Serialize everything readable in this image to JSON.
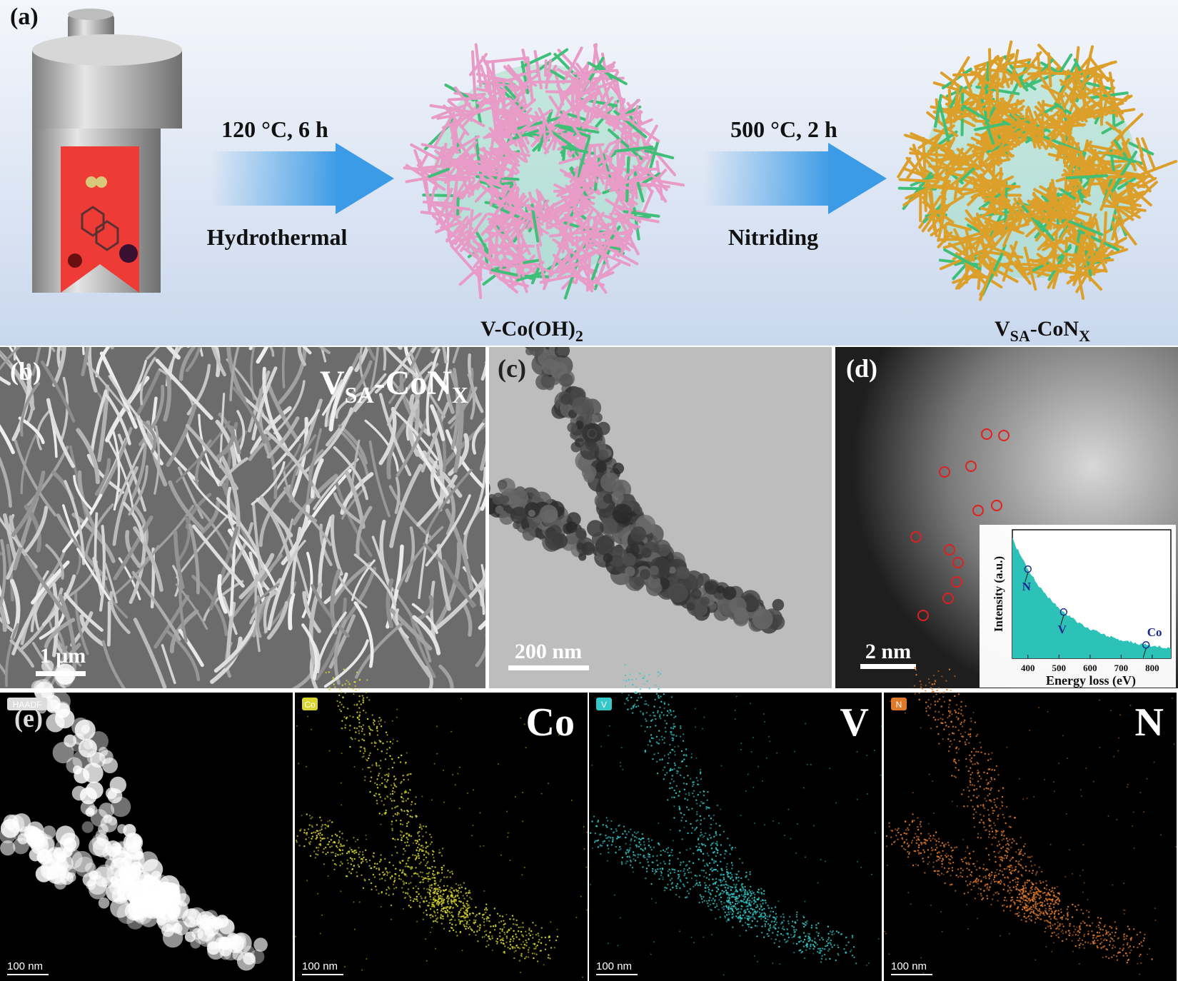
{
  "panel_a": {
    "label": "(a)",
    "step1": {
      "condition": "120 °C, 6 h",
      "process": "Hydrothermal"
    },
    "step2": {
      "condition": "500 °C, 2 h",
      "process": "Nitriding"
    },
    "intermediate": {
      "main": "V-Co(OH)",
      "sub": "2"
    },
    "product": {
      "v": "V",
      "sa": "SA",
      "con": "-CoN",
      "x": "X"
    }
  },
  "panel_b": {
    "label": "(b)",
    "title": {
      "v": "V",
      "sa": "SA",
      "con": "-CoN",
      "x": "X"
    },
    "scale_bar": "1 μm"
  },
  "panel_c": {
    "label": "(c)",
    "scale_bar": "200 nm"
  },
  "panel_d": {
    "label": "(d)",
    "scale_bar": "2 nm",
    "inset": {
      "y_label": "Intensity (a.u.)",
      "x_label": "Energy loss (eV)",
      "xlim": [
        350,
        860
      ],
      "xticks": [
        400,
        500,
        600,
        700,
        800
      ],
      "edges": [
        {
          "label": "N",
          "x": 400
        },
        {
          "label": "V",
          "x": 515
        },
        {
          "label": "Co",
          "x": 780
        }
      ]
    }
  },
  "panel_e": {
    "label": "(e)",
    "maps": [
      {
        "badge": "HAADF",
        "scale_bar": "100 nm"
      },
      {
        "badge": "Co",
        "element": "Co",
        "scale_bar": "100 nm"
      },
      {
        "badge": "V",
        "element": "V",
        "scale_bar": "100 nm"
      },
      {
        "badge": "N",
        "element": "N",
        "scale_bar": "100 nm"
      }
    ]
  }
}
